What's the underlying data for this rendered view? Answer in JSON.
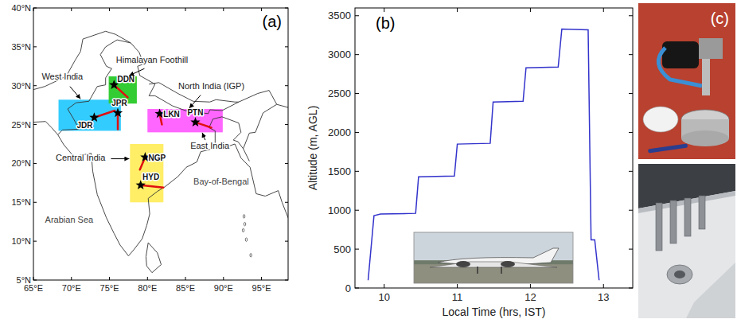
{
  "map": {
    "panel_label": "(a)",
    "xlim": [
      65,
      98.5
    ],
    "ylim": [
      5,
      40
    ],
    "xticks": [
      {
        "value": 65,
        "label": "65°E"
      },
      {
        "value": 70,
        "label": "70°E"
      },
      {
        "value": 75,
        "label": "75°E"
      },
      {
        "value": 80,
        "label": "80°E"
      },
      {
        "value": 85,
        "label": "85°E"
      },
      {
        "value": 90,
        "label": "90°E"
      },
      {
        "value": 95,
        "label": "95°E"
      }
    ],
    "yticks": [
      {
        "value": 5,
        "label": "5°N"
      },
      {
        "value": 10,
        "label": "10°N"
      },
      {
        "value": 15,
        "label": "15°N"
      },
      {
        "value": 20,
        "label": "20°N"
      },
      {
        "value": 25,
        "label": "25°N"
      },
      {
        "value": 30,
        "label": "30°N"
      },
      {
        "value": 35,
        "label": "35°N"
      },
      {
        "value": 40,
        "label": "40°N"
      }
    ],
    "regions": [
      {
        "names": [
          "West India"
        ],
        "color": "#33ccff",
        "lon": [
          68.3,
          76.5
        ],
        "lat": [
          24.2,
          28.2
        ]
      },
      {
        "names": [
          "Himalayan Foothill"
        ],
        "color": "#33cc33",
        "lon": [
          74.9,
          78.6
        ],
        "lat": [
          27.7,
          31.2
        ]
      },
      {
        "names": [
          "North India (IGP)",
          "East India"
        ],
        "color": "#ff66ff",
        "lon": [
          80.0,
          89.9
        ],
        "lat": [
          24.0,
          27.0
        ]
      },
      {
        "names": [
          "Central India"
        ],
        "color": "#ffee66",
        "lon": [
          77.7,
          82.1
        ],
        "lat": [
          15.0,
          22.5
        ]
      }
    ],
    "stations": [
      {
        "code": "JDR",
        "lon": 73.0,
        "lat": 25.9,
        "track_end": [
          75.7,
          26.8
        ]
      },
      {
        "code": "JPR",
        "lon": 76.1,
        "lat": 26.5,
        "track_end": [
          76.1,
          24.4
        ]
      },
      {
        "code": "DDN",
        "lon": 75.6,
        "lat": 30.1,
        "track_end": [
          77.4,
          28.5
        ]
      },
      {
        "code": "LKN",
        "lon": 81.6,
        "lat": 26.4,
        "track_end": [
          81.9,
          25.0
        ]
      },
      {
        "code": "PTN",
        "lon": 86.3,
        "lat": 25.3,
        "track_end": [
          88.4,
          24.6
        ]
      },
      {
        "code": "NGP",
        "lon": 79.7,
        "lat": 20.8,
        "track_end": [
          79.0,
          19.2
        ]
      },
      {
        "code": "HYD",
        "lon": 79.1,
        "lat": 17.2,
        "track_end": [
          82.1,
          16.9
        ]
      }
    ],
    "seas": [
      {
        "name": "Arabian Sea",
        "lon": 69.7,
        "lat": 12.4
      },
      {
        "name": "Bay-of-Bengal",
        "lon": 89.7,
        "lat": 17.3
      }
    ]
  },
  "chart_data": {
    "type": "line",
    "panel_label": "(b)",
    "x_label": "Local Time (hrs, IST)",
    "y_label": "Altitude (m, AGL)",
    "x": [
      9.78,
      9.86,
      9.95,
      10.43,
      10.47,
      10.96,
      11.0,
      11.45,
      11.49,
      11.9,
      11.94,
      12.38,
      12.43,
      12.79,
      12.83,
      12.88,
      12.94
    ],
    "values": [
      100,
      930,
      950,
      960,
      1430,
      1440,
      1850,
      1860,
      2390,
      2400,
      2830,
      2840,
      3330,
      3320,
      620,
      620,
      100
    ],
    "color": "#3333cc",
    "xlim": [
      9.6,
      13.4
    ],
    "xticks": [
      10,
      11,
      12,
      13
    ],
    "ylim": [
      0,
      3600
    ],
    "yticks": [
      0,
      500,
      1000,
      1500,
      2000,
      2500,
      3000,
      3500
    ]
  },
  "photos": {
    "panel_label": "(c)"
  }
}
